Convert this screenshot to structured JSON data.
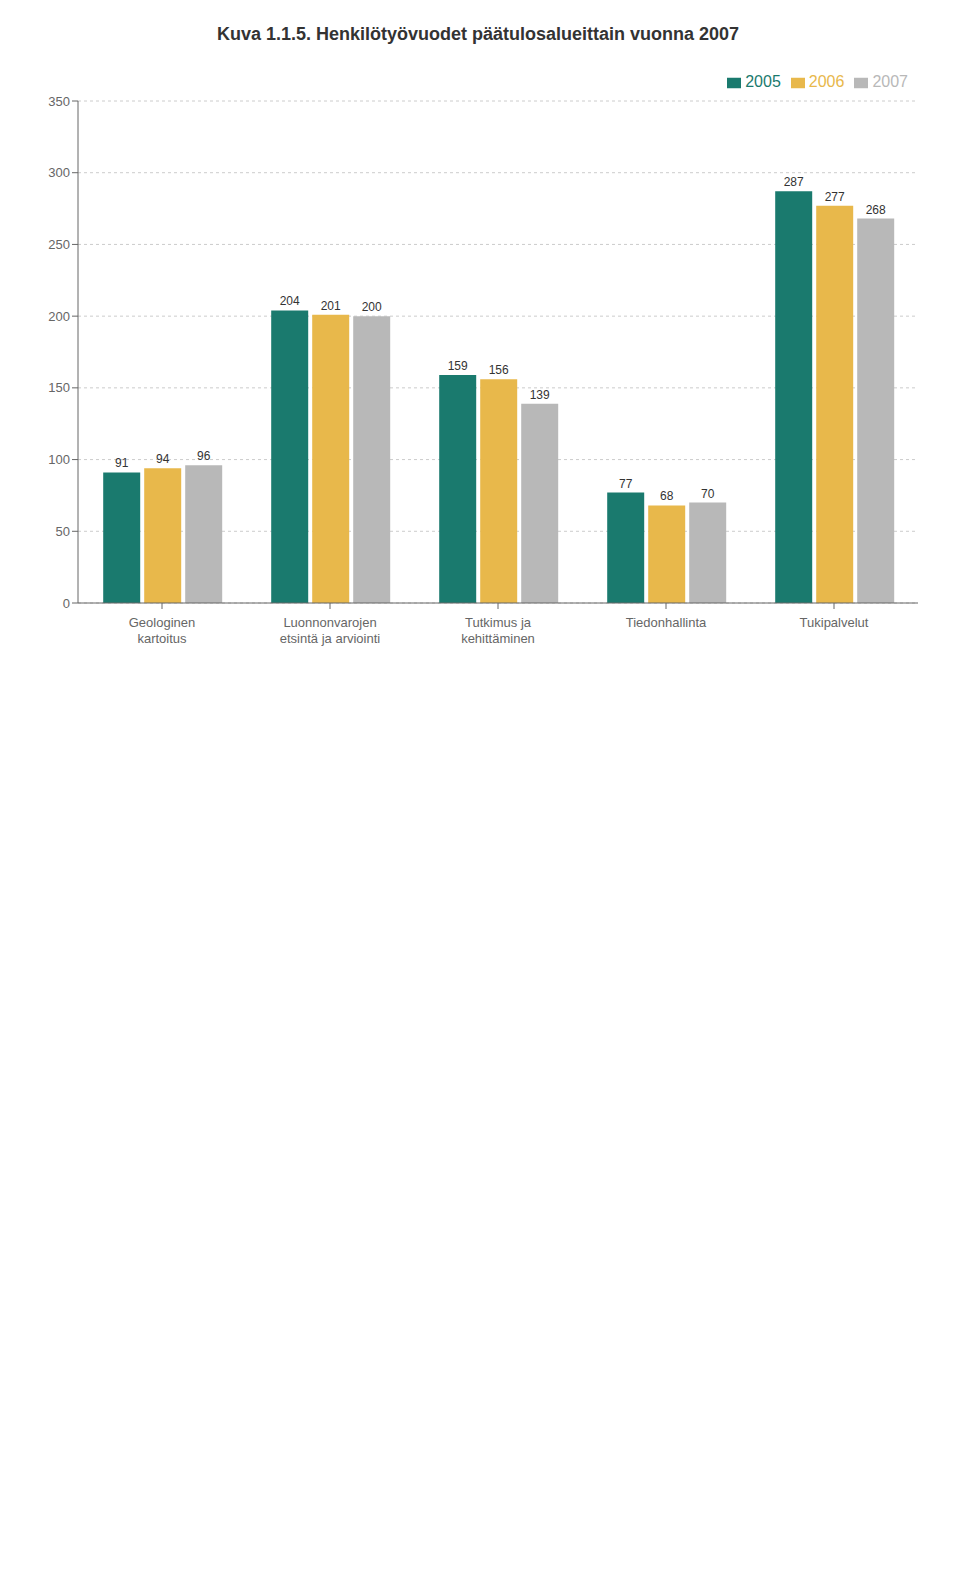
{
  "chart_data": {
    "type": "bar",
    "title": "Kuva 1.1.5. Henkilötyövuodet päätulosalueittain vuonna 2007",
    "categories": [
      "Geologinen\nkartoitus",
      "Luonnonvarojen\netsintä ja arviointi",
      "Tutkimus ja\nkehittäminen",
      "Tiedonhallinta",
      "Tukipalvelut"
    ],
    "series": [
      {
        "name": "2005",
        "color": "#1a7a6e",
        "values": [
          91,
          204,
          159,
          77,
          287
        ]
      },
      {
        "name": "2006",
        "color": "#e8b84b",
        "values": [
          94,
          201,
          156,
          68,
          277
        ]
      },
      {
        "name": "2007",
        "color": "#b8b8b8",
        "values": [
          96,
          200,
          139,
          70,
          268
        ]
      }
    ],
    "ylim": [
      0,
      350
    ],
    "yticks": [
      0,
      50,
      100,
      150,
      200,
      250,
      300,
      350
    ],
    "grid": true,
    "legend": "upper right",
    "data_labels": true
  }
}
